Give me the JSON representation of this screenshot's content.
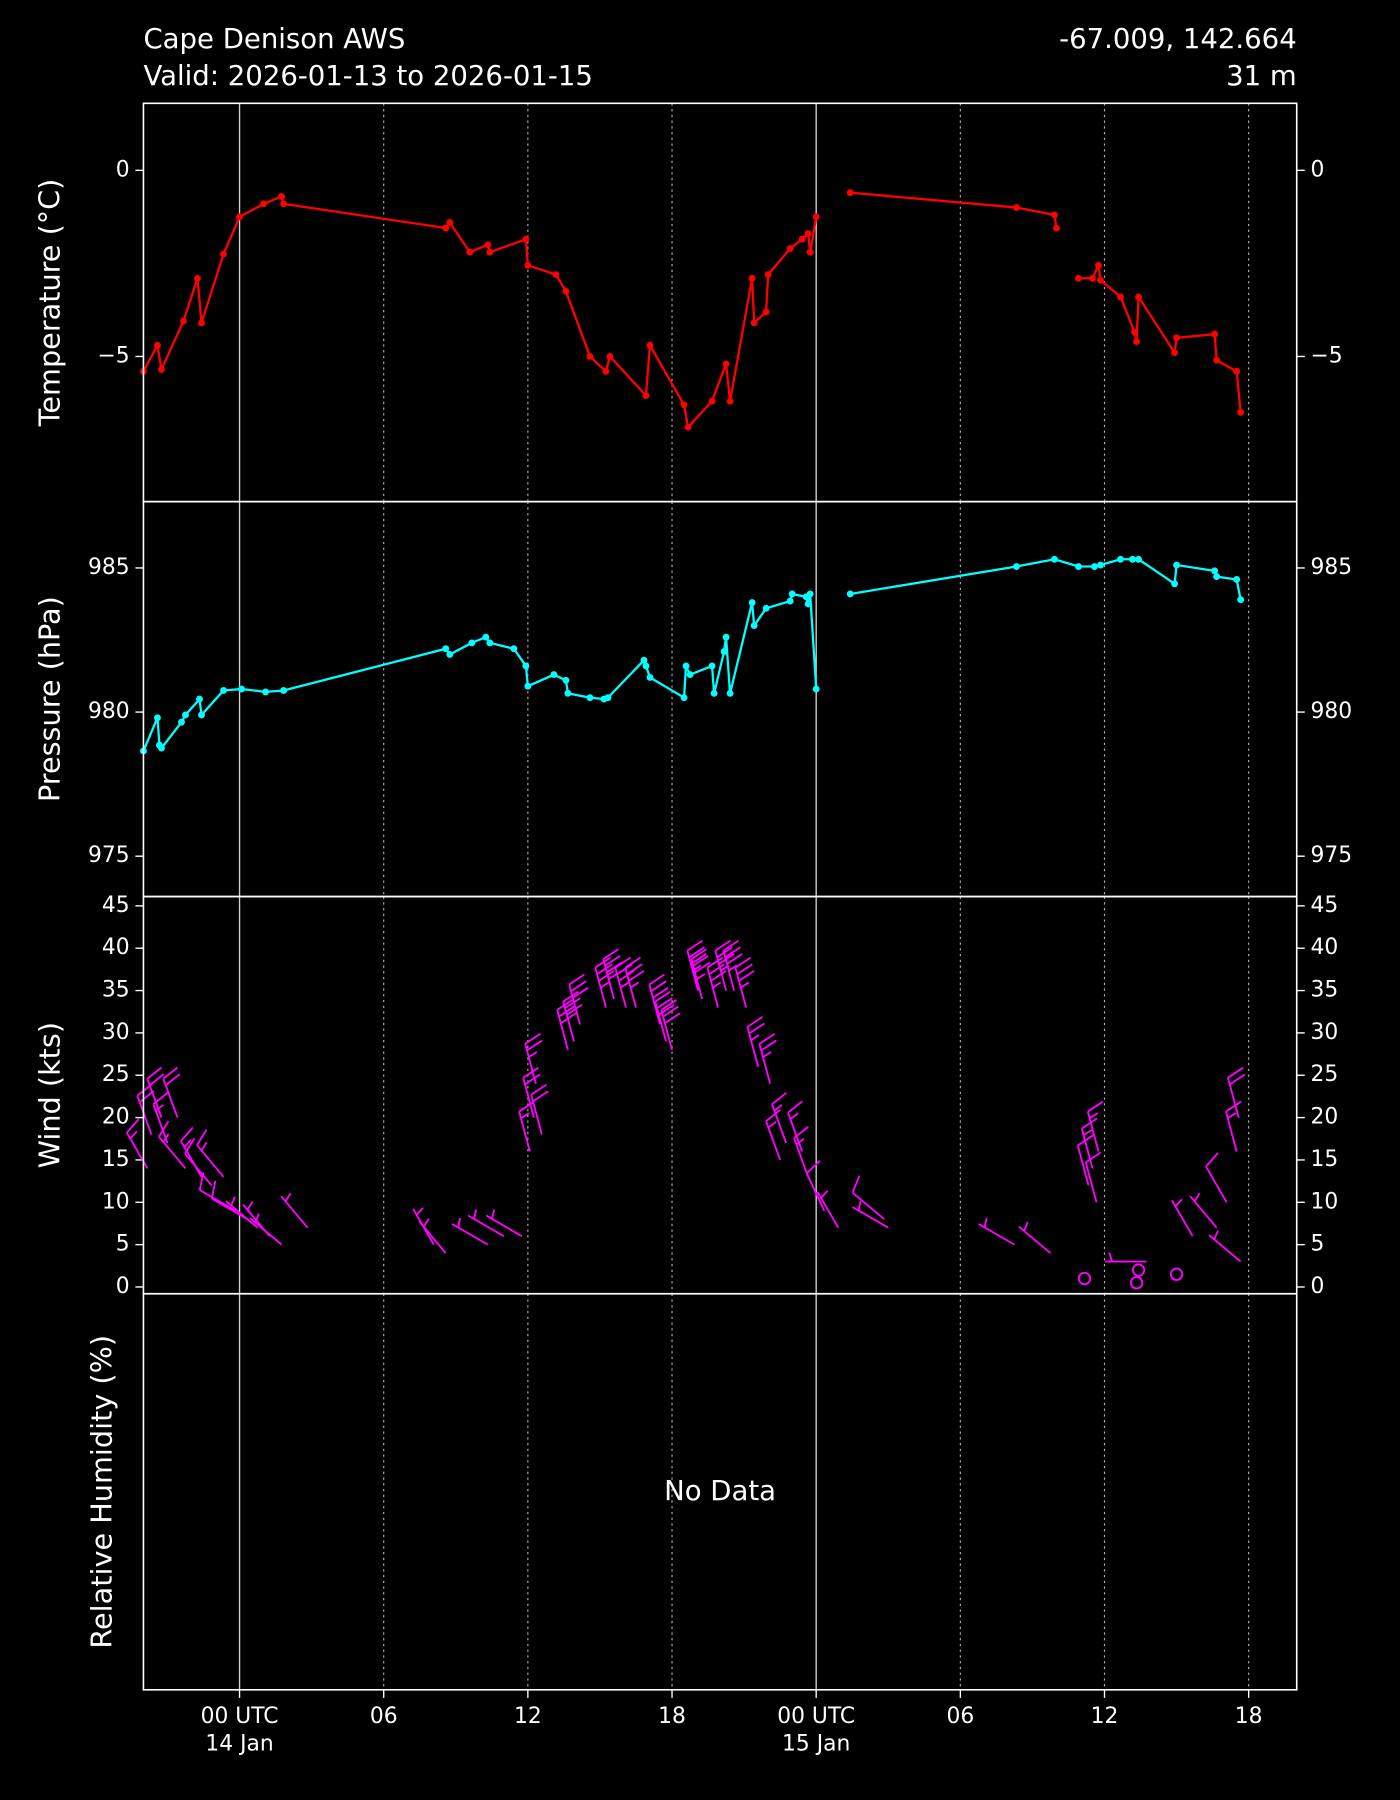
{
  "header": {
    "title": "Cape Denison AWS",
    "subtitle": "Valid: 2026-01-13 to 2026-01-15",
    "location": "-67.009, 142.664",
    "elevation": "31 m"
  },
  "chart_data": [
    {
      "type": "line",
      "y_label": "Temperature (°C)",
      "ylim": [
        -8.9,
        1.8
      ],
      "yticks": [
        0,
        {
          "value": -5,
          "label": "−5"
        }
      ],
      "series": [
        {
          "color": "#ff0000",
          "x": [
            "2026-01-13T20:00",
            "2026-01-13T20:35",
            "2026-01-13T20:45",
            "2026-01-13T21:40",
            "2026-01-13T22:15",
            "2026-01-13T22:25",
            "2026-01-13T23:20",
            "2026-01-14T00:00",
            "2026-01-14T01:00",
            "2026-01-14T01:45",
            "2026-01-14T01:50",
            "2026-01-14T08:35",
            "2026-01-14T08:45",
            "2026-01-14T09:35",
            "2026-01-14T10:20",
            "2026-01-14T10:25",
            "2026-01-14T11:55",
            "2026-01-14T12:00",
            "2026-01-14T13:10",
            "2026-01-14T13:35",
            "2026-01-14T14:35",
            "2026-01-14T15:15",
            "2026-01-14T15:25",
            "2026-01-14T16:55",
            "2026-01-14T17:05",
            "2026-01-14T18:30",
            "2026-01-14T18:40",
            "2026-01-14T19:40",
            "2026-01-14T20:15",
            "2026-01-14T20:25",
            "2026-01-14T21:20",
            "2026-01-14T21:25",
            "2026-01-14T21:55",
            "2026-01-14T22:00",
            "2026-01-14T22:55",
            "2026-01-14T23:25",
            "2026-01-14T23:40",
            "2026-01-14T23:45",
            "2026-01-15T00:00",
            "2026-01-15T00:40",
            "2026-01-15T01:25",
            "2026-01-15T08:20",
            "2026-01-15T09:55",
            "2026-01-15T10:00",
            "2026-01-15T10:25",
            "2026-01-15T10:55",
            "2026-01-15T11:30",
            "2026-01-15T11:45",
            "2026-01-15T11:50",
            "2026-01-15T12:40",
            "2026-01-15T13:15",
            "2026-01-15T13:20",
            "2026-01-15T13:25",
            "2026-01-15T14:55",
            "2026-01-15T15:00",
            "2026-01-15T16:35",
            "2026-01-15T16:40",
            "2026-01-15T17:30",
            "2026-01-15T17:40"
          ],
          "values": [
            -5.4,
            -4.7,
            -5.35,
            -4.05,
            -2.9,
            -4.1,
            -2.25,
            -1.25,
            -0.9,
            -0.7,
            -0.9,
            -1.55,
            -1.4,
            -2.2,
            -2.0,
            -2.2,
            -1.85,
            -2.55,
            -2.8,
            -3.25,
            -5.0,
            -5.4,
            -5.0,
            -6.05,
            -4.7,
            -6.3,
            -6.9,
            -6.2,
            -5.2,
            -6.2,
            -2.9,
            -4.1,
            -3.8,
            -2.8,
            -2.1,
            -1.85,
            -1.7,
            -2.2,
            -1.25,
            null,
            -0.6,
            -1.0,
            -1.2,
            -1.55,
            null,
            -2.9,
            -2.9,
            -2.55,
            -2.95,
            -3.4,
            -4.35,
            -4.6,
            -3.4,
            -4.9,
            -4.5,
            -4.4,
            -5.1,
            -5.4,
            -6.5
          ]
        }
      ]
    },
    {
      "type": "line",
      "y_label": "Pressure (hPa)",
      "ylim": [
        973.6,
        987.3
      ],
      "yticks": [
        975,
        980,
        985
      ],
      "series": [
        {
          "color": "#00ffff",
          "x": [
            "2026-01-13T20:00",
            "2026-01-13T20:35",
            "2026-01-13T20:40",
            "2026-01-13T20:45",
            "2026-01-13T21:35",
            "2026-01-13T21:45",
            "2026-01-13T22:20",
            "2026-01-13T22:25",
            "2026-01-13T23:20",
            "2026-01-14T00:05",
            "2026-01-14T01:05",
            "2026-01-14T01:50",
            "2026-01-14T08:35",
            "2026-01-14T08:45",
            "2026-01-14T09:40",
            "2026-01-14T10:15",
            "2026-01-14T10:25",
            "2026-01-14T11:25",
            "2026-01-14T11:55",
            "2026-01-14T12:00",
            "2026-01-14T13:05",
            "2026-01-14T13:35",
            "2026-01-14T13:40",
            "2026-01-14T14:35",
            "2026-01-14T15:10",
            "2026-01-14T15:20",
            "2026-01-14T16:50",
            "2026-01-14T16:55",
            "2026-01-14T17:05",
            "2026-01-14T18:30",
            "2026-01-14T18:35",
            "2026-01-14T18:45",
            "2026-01-14T19:40",
            "2026-01-14T19:45",
            "2026-01-14T20:10",
            "2026-01-14T20:15",
            "2026-01-14T20:25",
            "2026-01-14T21:20",
            "2026-01-14T21:25",
            "2026-01-14T21:55",
            "2026-01-14T22:55",
            "2026-01-14T23:00",
            "2026-01-14T23:35",
            "2026-01-14T23:40",
            "2026-01-14T23:45",
            "2026-01-15T00:00",
            "2026-01-15T00:40",
            "2026-01-15T01:25",
            "2026-01-15T08:20",
            "2026-01-15T09:55",
            "2026-01-15T10:55",
            "2026-01-15T11:35",
            "2026-01-15T11:50",
            "2026-01-15T12:40",
            "2026-01-15T13:10",
            "2026-01-15T13:25",
            "2026-01-15T14:55",
            "2026-01-15T15:00",
            "2026-01-15T16:35",
            "2026-01-15T16:40",
            "2026-01-15T17:30",
            "2026-01-15T17:40"
          ],
          "values": [
            978.65,
            979.8,
            978.85,
            978.75,
            979.65,
            979.9,
            980.45,
            979.9,
            980.75,
            980.8,
            980.7,
            980.75,
            982.2,
            982.0,
            982.4,
            982.6,
            982.4,
            982.2,
            981.6,
            980.9,
            981.3,
            981.1,
            980.65,
            980.5,
            980.45,
            980.5,
            981.8,
            981.6,
            981.2,
            980.5,
            981.6,
            981.3,
            981.6,
            980.65,
            982.1,
            982.6,
            980.65,
            983.8,
            983.0,
            983.6,
            983.85,
            984.1,
            984.0,
            983.75,
            984.1,
            980.8,
            null,
            984.1,
            985.05,
            985.3,
            985.05,
            985.05,
            985.1,
            985.3,
            985.3,
            985.3,
            984.45,
            985.1,
            984.9,
            984.7,
            984.6,
            983.9
          ]
        }
      ]
    },
    {
      "type": "barbs",
      "y_label": "Wind (kts)",
      "ylim": [
        -0.8,
        46.1
      ],
      "yticks": [
        0,
        5,
        10,
        15,
        20,
        25,
        30,
        35,
        40,
        45
      ],
      "color": "#ff00ff",
      "x": [
        "2026-01-13T20:10",
        "2026-01-13T20:20",
        "2026-01-13T20:45",
        "2026-01-13T21:00",
        "2026-01-13T21:25",
        "2026-01-13T21:45",
        "2026-01-13T22:25",
        "2026-01-13T22:50",
        "2026-01-13T23:20",
        "2026-01-13T23:50",
        "2026-01-14T00:20",
        "2026-01-14T00:45",
        "2026-01-14T01:15",
        "2026-01-14T01:45",
        "2026-01-14T02:50",
        "2026-01-14T08:05",
        "2026-01-14T08:35",
        "2026-01-14T10:20",
        "2026-01-14T11:00",
        "2026-01-14T11:45",
        "2026-01-14T12:05",
        "2026-01-14T12:15",
        "2026-01-14T12:20",
        "2026-01-14T12:35",
        "2026-01-14T13:40",
        "2026-01-14T13:55",
        "2026-01-14T14:10",
        "2026-01-14T15:15",
        "2026-01-14T15:35",
        "2026-01-14T16:05",
        "2026-01-14T16:30",
        "2026-01-14T17:30",
        "2026-01-14T17:45",
        "2026-01-14T18:00",
        "2026-01-14T19:05",
        "2026-01-14T19:15",
        "2026-01-14T19:55",
        "2026-01-14T20:15",
        "2026-01-14T20:35",
        "2026-01-14T21:05",
        "2026-01-14T21:35",
        "2026-01-14T22:05",
        "2026-01-14T22:30",
        "2026-01-14T22:45",
        "2026-01-14T23:25",
        "2026-01-14T23:40",
        "2026-01-15T00:20",
        "2026-01-15T00:55",
        "2026-01-15T02:50",
        "2026-01-15T03:00",
        "2026-01-15T08:15",
        "2026-01-15T09:45",
        "2026-01-15T11:10",
        "2026-01-15T11:20",
        "2026-01-15T11:30",
        "2026-01-15T11:40",
        "2026-01-15T11:45",
        "2026-01-15T13:20",
        "2026-01-15T13:25",
        "2026-01-15T13:45",
        "2026-01-15T15:00",
        "2026-01-15T15:40",
        "2026-01-15T16:40",
        "2026-01-15T17:05",
        "2026-01-15T17:30",
        "2026-01-15T17:35",
        "2026-01-15T17:40"
      ],
      "speed": [
        14,
        18,
        20,
        17,
        20,
        14,
        13,
        12,
        13,
        9,
        8,
        7,
        6,
        5,
        7,
        5,
        4,
        5,
        6,
        6,
        16,
        20,
        24,
        18,
        28,
        29,
        31,
        33,
        34,
        33,
        33,
        31,
        29,
        28,
        35,
        34,
        33,
        35,
        35,
        33,
        26,
        24,
        15,
        17,
        16,
        13,
        9,
        7,
        8,
        7,
        5,
        4,
        1,
        12,
        14,
        10,
        16,
        0.5,
        2,
        3,
        1.5,
        6,
        7,
        10,
        16,
        20,
        3
      ],
      "direction": [
        330,
        340,
        340,
        340,
        340,
        320,
        330,
        320,
        320,
        300,
        300,
        310,
        320,
        310,
        320,
        330,
        320,
        300,
        300,
        300,
        345,
        345,
        345,
        345,
        345,
        345,
        345,
        345,
        345,
        345,
        345,
        345,
        345,
        345,
        345,
        345,
        345,
        345,
        345,
        345,
        345,
        345,
        340,
        340,
        340,
        340,
        335,
        330,
        310,
        300,
        300,
        310,
        310,
        345,
        345,
        345,
        345,
        0,
        0,
        270,
        0,
        330,
        320,
        330,
        345,
        345,
        310
      ]
    },
    {
      "type": "empty",
      "y_label": "Relative Humidity (%)",
      "annotation": "No Data",
      "xlim": [
        "2026-01-13T20:00",
        "2026-01-15T20:00"
      ],
      "xticks": [
        {
          "value": "2026-01-14T00:00",
          "label": "00 UTC\n14 Jan"
        },
        {
          "value": "2026-01-14T06:00",
          "label": "06"
        },
        {
          "value": "2026-01-14T12:00",
          "label": "12"
        },
        {
          "value": "2026-01-14T18:00",
          "label": "18"
        },
        {
          "value": "2026-01-15T00:00",
          "label": "00 UTC\n15 Jan"
        },
        {
          "value": "2026-01-15T06:00",
          "label": "06"
        },
        {
          "value": "2026-01-15T12:00",
          "label": "12"
        },
        {
          "value": "2026-01-15T18:00",
          "label": "18"
        }
      ]
    }
  ]
}
